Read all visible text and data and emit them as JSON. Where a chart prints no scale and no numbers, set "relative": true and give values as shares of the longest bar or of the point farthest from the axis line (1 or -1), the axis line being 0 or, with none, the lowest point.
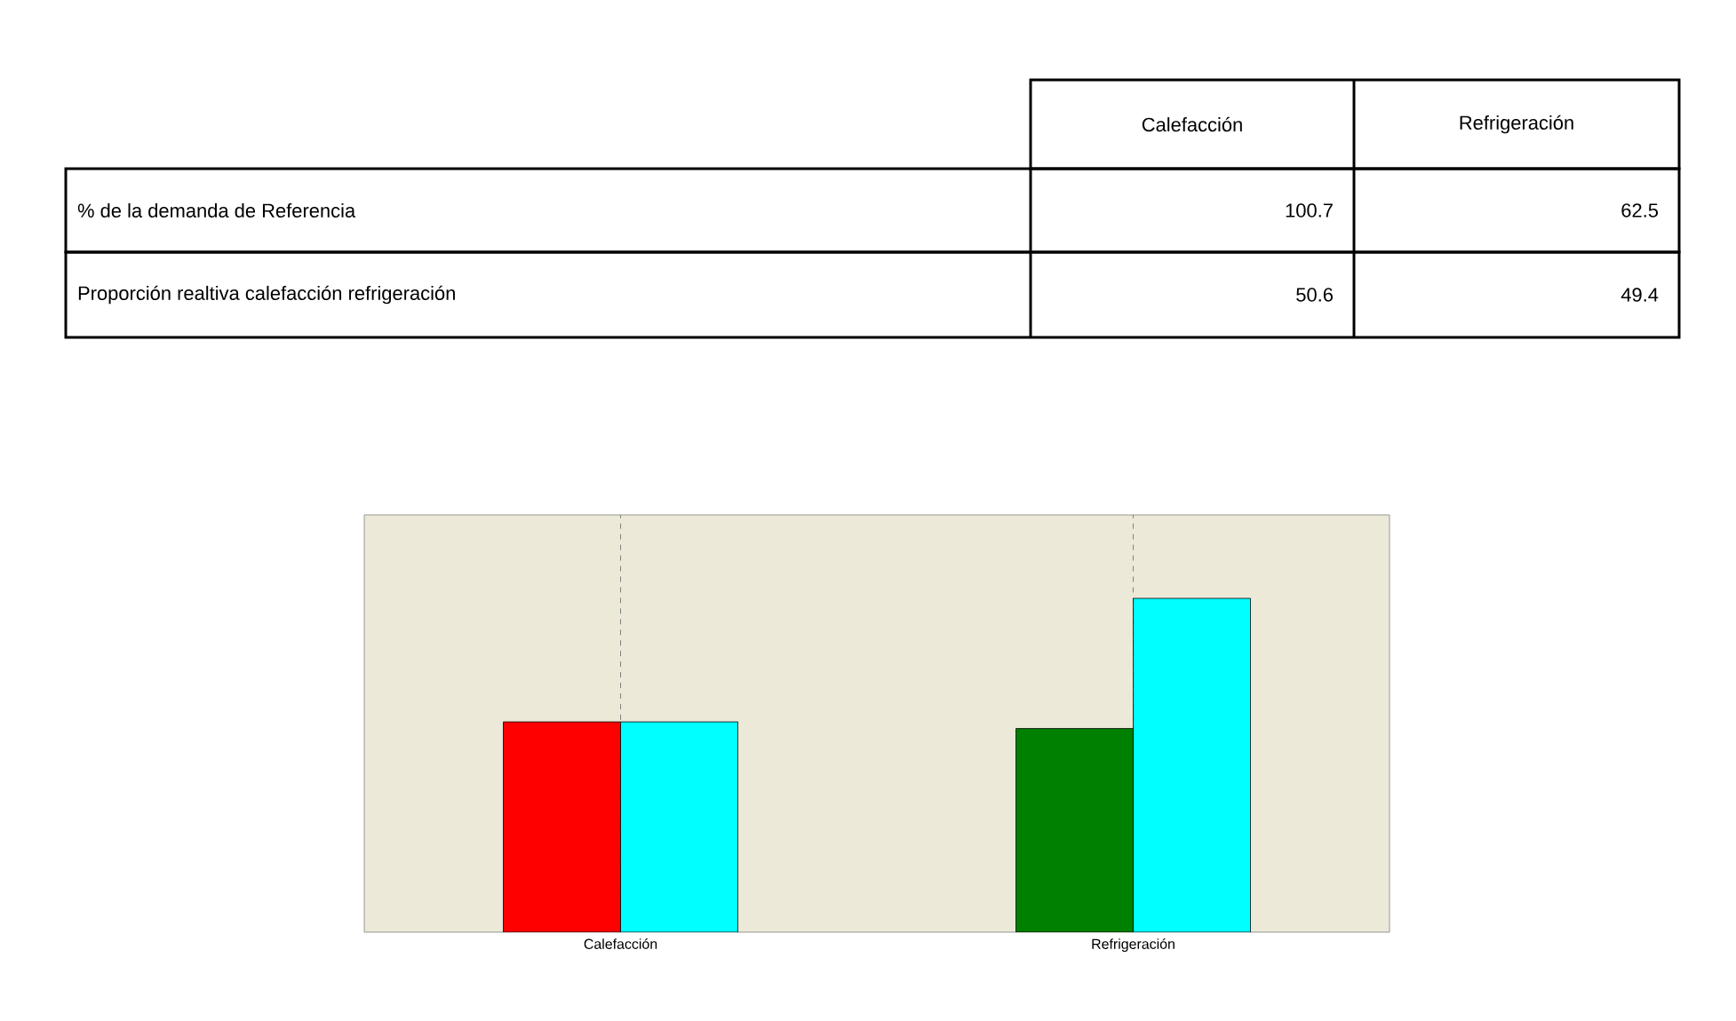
{
  "chart_data": [
    {
      "type": "other",
      "categories": [
        "Calefacción",
        "Refrigeración"
      ],
      "y_categories": [
        "% de la demanda de Referencia",
        "Proporción realtiva calefacción refrigeración"
      ],
      "cell_labels": [
        [
          "100.7",
          "62.5"
        ],
        [
          "50.6",
          "49.4"
        ]
      ]
    },
    {
      "type": "bar",
      "relative": true,
      "categories": [
        "Calefacción",
        "Refrigeración"
      ],
      "grid": "x",
      "series": [
        {
          "colors": [
            "#ff0000",
            "#008000"
          ],
          "values": [
            0.63,
            0.61
          ]
        },
        {
          "color": "#00ffff",
          "values": [
            0.63,
            1
          ]
        }
      ]
    }
  ]
}
